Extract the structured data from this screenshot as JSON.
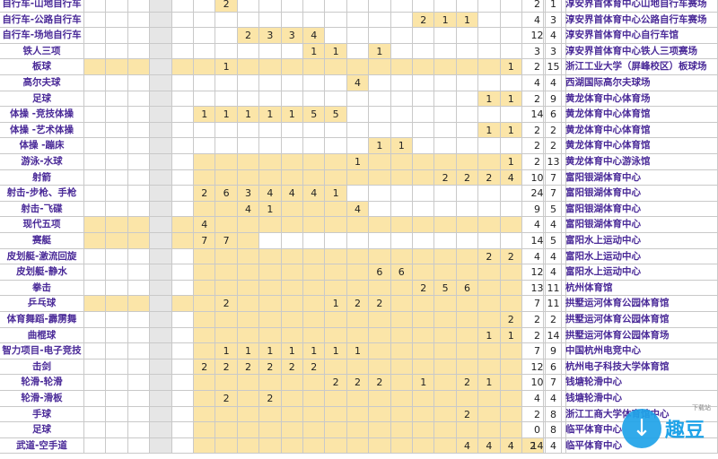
{
  "rows": [
    {
      "sport": "自行车-山地自行车",
      "days": [
        "",
        "",
        "",
        "",
        "",
        "",
        "2",
        "",
        "",
        "",
        "",
        "",
        "",
        "",
        "",
        "",
        "",
        "",
        "",
        "",
        "",
        ""
      ],
      "total": "2",
      "events": "1",
      "venue": "淳安界首体育中心山地自行车赛场"
    },
    {
      "sport": "自行车-公路自行车",
      "days": [
        "",
        "",
        "",
        "",
        "",
        "",
        "",
        "",
        "",
        "",
        "",
        "",
        "",
        "",
        "",
        "2",
        "1",
        "1",
        "",
        "",
        "",
        ""
      ],
      "total": "4",
      "events": "3",
      "venue": "淳安界首体育中心公路自行车赛场"
    },
    {
      "sport": "自行车-场地自行车",
      "days": [
        "",
        "",
        "",
        "",
        "",
        "",
        "",
        "2",
        "3",
        "3",
        "4",
        "",
        "",
        "",
        "",
        "",
        "",
        "",
        "",
        "",
        "",
        ""
      ],
      "total": "12",
      "events": "4",
      "venue": "淳安界首体育中心自行车馆"
    },
    {
      "sport": "铁人三项",
      "days": [
        "",
        "",
        "",
        "",
        "",
        "",
        "",
        "",
        "",
        "",
        "1",
        "1",
        "",
        "1",
        "",
        "",
        "",
        "",
        "",
        "",
        "",
        ""
      ],
      "total": "3",
      "events": "3",
      "venue": "淳安界首体育中心铁人三项赛场"
    },
    {
      "sport": "板球",
      "days": [
        "",
        "",
        "",
        "",
        "",
        "",
        "1",
        "",
        "",
        "",
        "",
        "",
        "",
        "",
        "",
        "",
        "",
        "",
        "",
        "1",
        "",
        ""
      ],
      "total": "2",
      "events": "15",
      "venue": "浙江工业大学（屏峰校区）板球场"
    },
    {
      "sport": "高尔夫球",
      "days": [
        "",
        "",
        "",
        "",
        "",
        "",
        "",
        "",
        "",
        "",
        "",
        "",
        "4",
        "",
        "",
        "",
        "",
        "",
        "",
        "",
        "",
        ""
      ],
      "total": "4",
      "events": "4",
      "venue": "西湖国际高尔夫球场"
    },
    {
      "sport": "足球",
      "days": [
        "",
        "",
        "",
        "",
        "",
        "",
        "",
        "",
        "",
        "",
        "",
        "",
        "",
        "",
        "",
        "",
        "",
        "",
        "1",
        "1",
        "",
        ""
      ],
      "total": "2",
      "events": "9",
      "venue": "黄龙体育中心体育场"
    },
    {
      "sport": "体操 -竞技体操",
      "days": [
        "",
        "",
        "",
        "",
        "",
        "1",
        "1",
        "1",
        "1",
        "1",
        "5",
        "5",
        "",
        "",
        "",
        "",
        "",
        "",
        "",
        "",
        "",
        ""
      ],
      "total": "14",
      "events": "6",
      "venue": "黄龙体育中心体育馆"
    },
    {
      "sport": "体操 -艺术体操",
      "days": [
        "",
        "",
        "",
        "",
        "",
        "",
        "",
        "",
        "",
        "",
        "",
        "",
        "",
        "",
        "",
        "",
        "",
        "",
        "1",
        "1",
        "",
        ""
      ],
      "total": "2",
      "events": "2",
      "venue": "黄龙体育中心体育馆"
    },
    {
      "sport": "体操 -蹦床",
      "days": [
        "",
        "",
        "",
        "",
        "",
        "",
        "",
        "",
        "",
        "",
        "",
        "",
        "",
        "1",
        "1",
        "",
        "",
        "",
        "",
        "",
        "",
        ""
      ],
      "total": "2",
      "events": "2",
      "venue": "黄龙体育中心体育馆"
    },
    {
      "sport": "游泳-水球",
      "days": [
        "",
        "",
        "",
        "",
        "",
        "",
        "",
        "",
        "",
        "",
        "",
        "",
        "1",
        "",
        "",
        "",
        "",
        "",
        "",
        "1",
        "",
        ""
      ],
      "total": "2",
      "events": "13",
      "venue": "黄龙体育中心游泳馆"
    },
    {
      "sport": "射箭",
      "days": [
        "",
        "",
        "",
        "",
        "",
        "",
        "",
        "",
        "",
        "",
        "",
        "",
        "",
        "",
        "",
        "",
        "2",
        "2",
        "2",
        "4",
        "",
        ""
      ],
      "total": "10",
      "events": "7",
      "venue": "富阳银湖体育中心"
    },
    {
      "sport": "射击-步枪、手枪",
      "days": [
        "",
        "",
        "",
        "",
        "",
        "2",
        "6",
        "3",
        "4",
        "4",
        "4",
        "1",
        "",
        "",
        "",
        "",
        "",
        "",
        "",
        "",
        "",
        ""
      ],
      "total": "24",
      "events": "7",
      "venue": "富阳银湖体育中心"
    },
    {
      "sport": "射击-飞碟",
      "days": [
        "",
        "",
        "",
        "",
        "",
        "",
        "",
        "4",
        "1",
        "",
        "",
        "",
        "4",
        "",
        "",
        "",
        "",
        "",
        "",
        "",
        "",
        ""
      ],
      "total": "9",
      "events": "5",
      "venue": "富阳银湖体育中心"
    },
    {
      "sport": "现代五项",
      "days": [
        "",
        "",
        "",
        "",
        "",
        "4",
        "",
        "",
        "",
        "",
        "",
        "",
        "",
        "",
        "",
        "",
        "",
        "",
        "",
        "",
        "",
        ""
      ],
      "total": "4",
      "events": "4",
      "venue": "富阳银湖体育中心"
    },
    {
      "sport": "赛艇",
      "days": [
        "",
        "",
        "",
        "",
        "",
        "7",
        "7",
        "",
        "",
        "",
        "",
        "",
        "",
        "",
        "",
        "",
        "",
        "",
        "",
        "",
        "",
        ""
      ],
      "total": "14",
      "events": "5",
      "venue": "富阳水上运动中心"
    },
    {
      "sport": "皮划艇-激流回旋",
      "days": [
        "",
        "",
        "",
        "",
        "",
        "",
        "",
        "",
        "",
        "",
        "",
        "",
        "",
        "",
        "",
        "",
        "",
        "",
        "2",
        "2",
        "",
        ""
      ],
      "total": "4",
      "events": "4",
      "venue": "富阳水上运动中心"
    },
    {
      "sport": "皮划艇-静水",
      "days": [
        "",
        "",
        "",
        "",
        "",
        "",
        "",
        "",
        "",
        "",
        "",
        "",
        "",
        "6",
        "6",
        "",
        "",
        "",
        "",
        "",
        "",
        ""
      ],
      "total": "12",
      "events": "4",
      "venue": "富阳水上运动中心"
    },
    {
      "sport": "拳击",
      "days": [
        "",
        "",
        "",
        "",
        "",
        "",
        "",
        "",
        "",
        "",
        "",
        "",
        "",
        "",
        "",
        "2",
        "5",
        "6",
        "",
        "",
        "",
        ""
      ],
      "total": "13",
      "events": "11",
      "venue": "杭州体育馆"
    },
    {
      "sport": "乒乓球",
      "days": [
        "",
        "",
        "",
        "",
        "",
        "",
        "2",
        "",
        "",
        "",
        "",
        "1",
        "2",
        "2",
        "",
        "",
        "",
        "",
        "",
        "",
        "",
        ""
      ],
      "total": "7",
      "events": "11",
      "venue": "拱墅运河体育公园体育馆"
    },
    {
      "sport": "体育舞蹈-霹雳舞",
      "days": [
        "",
        "",
        "",
        "",
        "",
        "",
        "",
        "",
        "",
        "",
        "",
        "",
        "",
        "",
        "",
        "",
        "",
        "",
        "",
        "2",
        "",
        ""
      ],
      "total": "2",
      "events": "2",
      "venue": "拱墅运河体育公园体育馆"
    },
    {
      "sport": "曲棍球",
      "days": [
        "",
        "",
        "",
        "",
        "",
        "",
        "",
        "",
        "",
        "",
        "",
        "",
        "",
        "",
        "",
        "",
        "",
        "",
        "1",
        "1",
        "",
        ""
      ],
      "total": "2",
      "events": "14",
      "venue": "拱墅运河体育公园体育场"
    },
    {
      "sport": "智力项目-电子竞技",
      "days": [
        "",
        "",
        "",
        "",
        "",
        "",
        "1",
        "1",
        "1",
        "1",
        "1",
        "1",
        "1",
        "",
        "",
        "",
        "",
        "",
        "",
        "",
        "",
        ""
      ],
      "total": "7",
      "events": "9",
      "venue": "中国杭州电竞中心"
    },
    {
      "sport": "击剑",
      "days": [
        "",
        "",
        "",
        "",
        "",
        "2",
        "2",
        "2",
        "2",
        "2",
        "2",
        "",
        "",
        "",
        "",
        "",
        "",
        "",
        "",
        "",
        "",
        ""
      ],
      "total": "12",
      "events": "6",
      "venue": "杭州电子科技大学体育馆"
    },
    {
      "sport": "轮滑-轮滑",
      "days": [
        "",
        "",
        "",
        "",
        "",
        "",
        "",
        "",
        "",
        "",
        "",
        "2",
        "2",
        "2",
        "",
        "1",
        "",
        "2",
        "1",
        "",
        "",
        ""
      ],
      "total": "10",
      "events": "7",
      "venue": "钱塘轮滑中心"
    },
    {
      "sport": "轮滑-滑板",
      "days": [
        "",
        "",
        "",
        "",
        "",
        "",
        "2",
        "",
        "2",
        "",
        "",
        "",
        "",
        "",
        "",
        "",
        "",
        "",
        "",
        "",
        "",
        ""
      ],
      "total": "4",
      "events": "4",
      "venue": "钱塘轮滑中心"
    },
    {
      "sport": "手球",
      "days": [
        "",
        "",
        "",
        "",
        "",
        "",
        "",
        "",
        "",
        "",
        "",
        "",
        "",
        "",
        "",
        "",
        "",
        "2",
        "",
        "",
        "",
        ""
      ],
      "total": "2",
      "events": "8",
      "venue": "浙江工商大学体育馆中心"
    },
    {
      "sport": "足球",
      "days": [
        "",
        "",
        "",
        "",
        "",
        "",
        "",
        "",
        "",
        "",
        "",
        "",
        "",
        "",
        "",
        "",
        "",
        "",
        "",
        "",
        "",
        ""
      ],
      "total": "0",
      "events": "8",
      "venue": "临平体育中心"
    },
    {
      "sport": "武道-空手道",
      "days": [
        "",
        "",
        "",
        "",
        "",
        "",
        "",
        "",
        "",
        "",
        "",
        "",
        "",
        "",
        "",
        "",
        "",
        "4",
        "4",
        "4",
        "2",
        ""
      ],
      "total": "14",
      "events": "4",
      "venue": "临平体育中心"
    }
  ],
  "logo": {
    "text": "趣豆",
    "small": "下载站"
  },
  "colors": {
    "highlight": "#fbe5a8",
    "sport_text": "#4a2a98",
    "grid": "#c9c9c9"
  }
}
